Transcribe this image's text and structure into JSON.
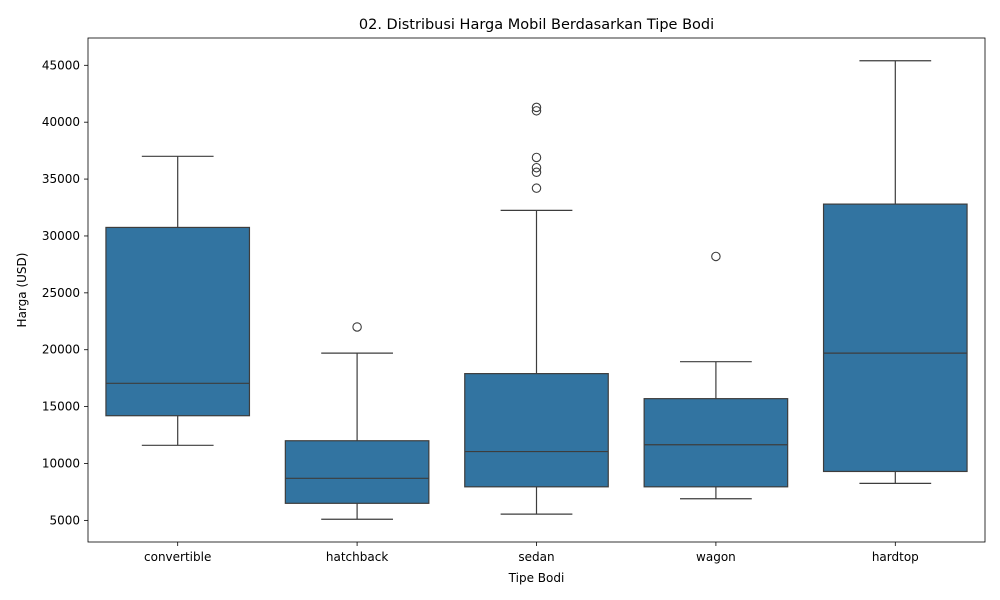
{
  "chart_data": {
    "type": "boxplot",
    "title": "02. Distribusi Harga Mobil Berdasarkan Tipe Bodi",
    "xlabel": "Tipe Bodi",
    "ylabel": "Harga (USD)",
    "ylim": [
      3100,
      47400
    ],
    "yticks": [
      5000,
      10000,
      15000,
      20000,
      25000,
      30000,
      35000,
      40000,
      45000
    ],
    "box_color": "#3274a1",
    "line_color": "#3d3d3d",
    "categories": [
      "convertible",
      "hatchback",
      "sedan",
      "wagon",
      "hardtop"
    ],
    "boxes": [
      {
        "category": "convertible",
        "whisker_low": 11600,
        "q1": 14200,
        "median": 17050,
        "q3": 30750,
        "whisker_high": 37000,
        "outliers": []
      },
      {
        "category": "hatchback",
        "whisker_low": 5100,
        "q1": 6500,
        "median": 8700,
        "q3": 12000,
        "whisker_high": 19700,
        "outliers": [
          22000
        ]
      },
      {
        "category": "sedan",
        "whisker_low": 5550,
        "q1": 7950,
        "median": 11050,
        "q3": 17900,
        "whisker_high": 32250,
        "outliers": [
          34200,
          35600,
          36000,
          36900,
          41000,
          41300
        ]
      },
      {
        "category": "wagon",
        "whisker_low": 6900,
        "q1": 7950,
        "median": 11650,
        "q3": 15700,
        "whisker_high": 18950,
        "outliers": [
          28200
        ]
      },
      {
        "category": "hardtop",
        "whisker_low": 8250,
        "q1": 9300,
        "median": 19700,
        "q3": 32800,
        "whisker_high": 45400,
        "outliers": []
      }
    ]
  }
}
